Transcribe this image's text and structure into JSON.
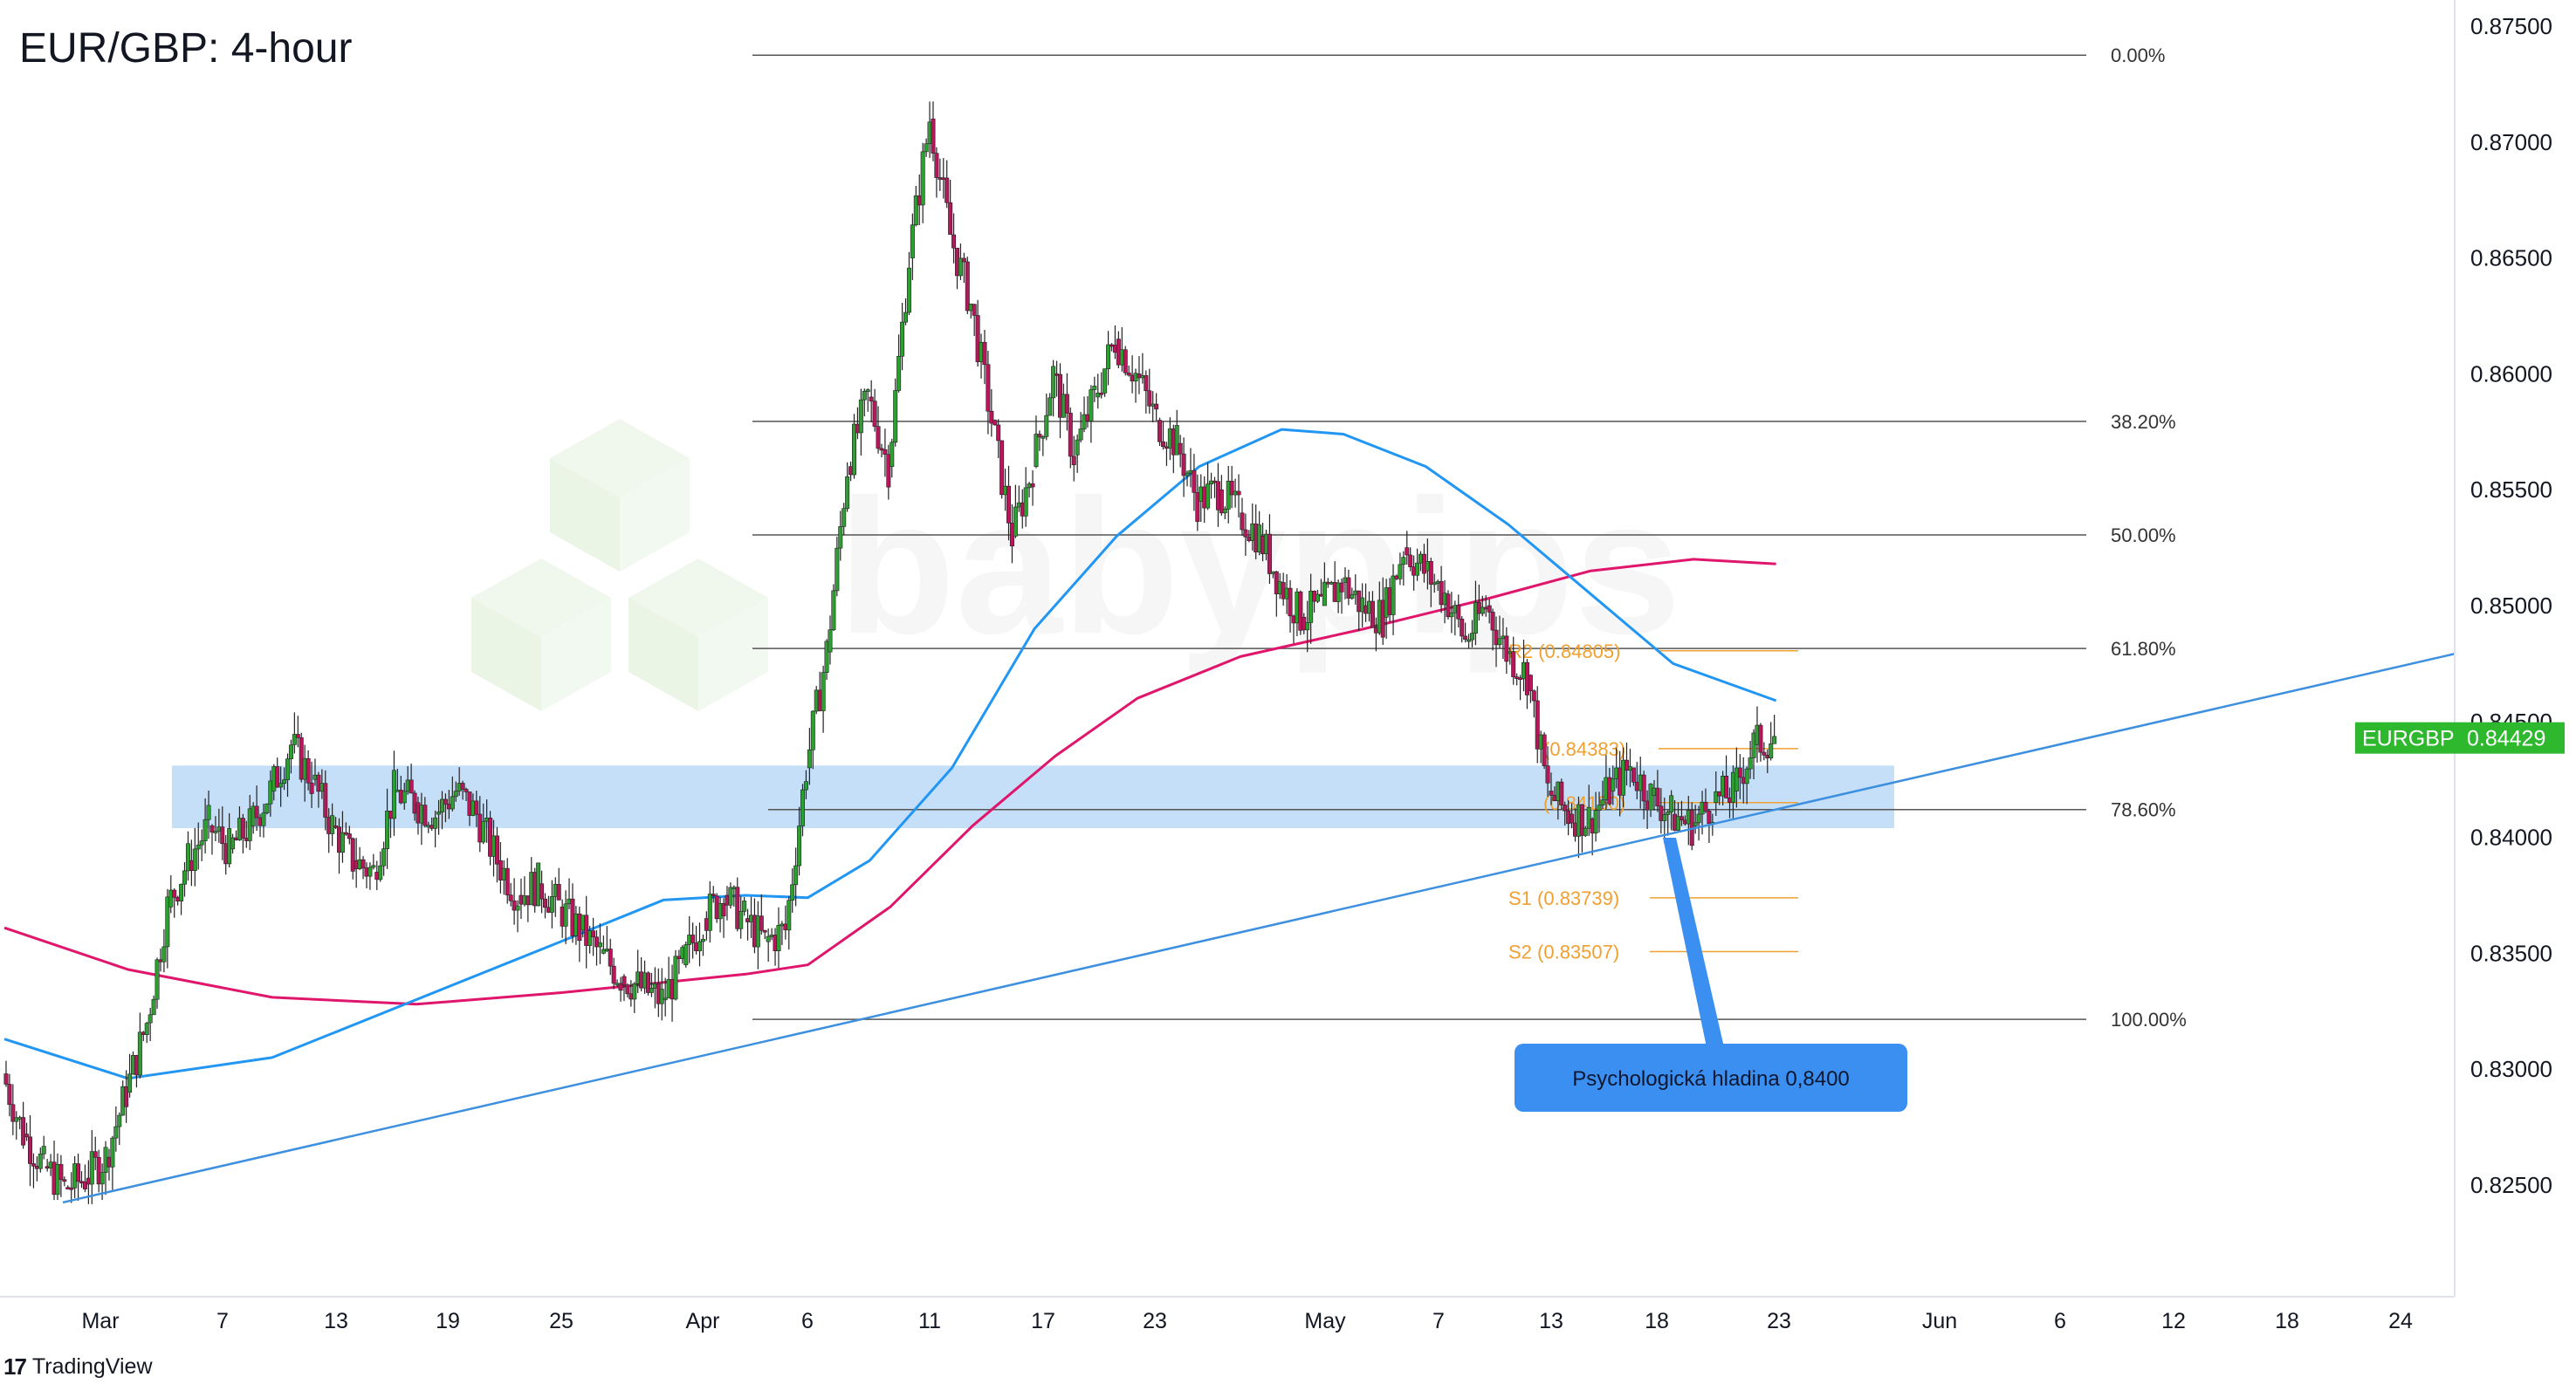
{
  "header": {
    "title": "EUR/GBP: 4-hour"
  },
  "footer": {
    "brand": "TradingView"
  },
  "colors": {
    "bull": "#2e9e33",
    "bear": "#b5175a",
    "sma100": "#2196f3",
    "sma200": "#e0166c",
    "trendline": "#3d8fe0",
    "zone": "#bbd9f7",
    "fib": "#555555",
    "pivot": "#f0a030",
    "callout": "#3a8ff0",
    "price_badge": "#2eb82e"
  },
  "watermark": {
    "text": "babypips"
  },
  "chart_data": {
    "type": "candlestick",
    "symbol": "EURGBP",
    "last_price": "0.84429",
    "ylim": [
      0.8195,
      0.8765
    ],
    "y_ticks": [
      "0.87500",
      "0.87000",
      "0.86500",
      "0.86000",
      "0.85500",
      "0.85000",
      "0.84500",
      "0.84000",
      "0.83500",
      "0.83000",
      "0.82500"
    ],
    "x_ticks": [
      "Mar",
      "7",
      "13",
      "19",
      "25",
      "Apr",
      "6",
      "11",
      "17",
      "23",
      "May",
      "7",
      "13",
      "18",
      "23",
      "Jun",
      "6",
      "12",
      "18",
      "24"
    ],
    "fibonacci": [
      {
        "label": "0.00%",
        "price": 0.87375
      },
      {
        "label": "38.20%",
        "price": 0.85795
      },
      {
        "label": "50.00%",
        "price": 0.85305
      },
      {
        "label": "61.80%",
        "price": 0.84815
      },
      {
        "label": "78.60%",
        "price": 0.8412
      },
      {
        "label": "100.00%",
        "price": 0.83215
      }
    ],
    "pivots": [
      {
        "label": "R2 (0.84805)",
        "price": 0.84805
      },
      {
        "label": "(0.84383)",
        "price": 0.84383
      },
      {
        "label": "(0.84150)",
        "price": 0.8415
      },
      {
        "label": "S1 (0.83739)",
        "price": 0.83739
      },
      {
        "label": "S2 (0.83507)",
        "price": 0.83507
      }
    ],
    "support_zone": [
      0.8404,
      0.8431
    ],
    "trendline": [
      {
        "date": "2025-03-01",
        "price": 0.82425
      },
      {
        "date": "2025-05-31",
        "price": 0.84792
      }
    ],
    "annotation": "Psychologická hladina 0,8400",
    "series_close": [
      {
        "date": "2025-02-25",
        "close": 0.8298
      },
      {
        "date": "2025-02-26",
        "close": 0.8272
      },
      {
        "date": "2025-02-27",
        "close": 0.8258
      },
      {
        "date": "2025-02-28",
        "close": 0.8249
      },
      {
        "date": "2025-03-01",
        "close": 0.8253
      },
      {
        "date": "2025-03-02",
        "close": 0.8262
      },
      {
        "date": "2025-03-03",
        "close": 0.829
      },
      {
        "date": "2025-03-04",
        "close": 0.832
      },
      {
        "date": "2025-03-05",
        "close": 0.837
      },
      {
        "date": "2025-03-06",
        "close": 0.839
      },
      {
        "date": "2025-03-07",
        "close": 0.8405
      },
      {
        "date": "2025-03-08",
        "close": 0.8395
      },
      {
        "date": "2025-03-09",
        "close": 0.8405
      },
      {
        "date": "2025-03-10",
        "close": 0.842
      },
      {
        "date": "2025-03-11",
        "close": 0.844
      },
      {
        "date": "2025-03-12",
        "close": 0.8425
      },
      {
        "date": "2025-03-13",
        "close": 0.8405
      },
      {
        "date": "2025-03-14",
        "close": 0.839
      },
      {
        "date": "2025-03-15",
        "close": 0.8385
      },
      {
        "date": "2025-03-16",
        "close": 0.842
      },
      {
        "date": "2025-03-17",
        "close": 0.8415
      },
      {
        "date": "2025-03-18",
        "close": 0.841
      },
      {
        "date": "2025-03-19",
        "close": 0.842
      },
      {
        "date": "2025-03-20",
        "close": 0.841
      },
      {
        "date": "2025-03-21",
        "close": 0.839
      },
      {
        "date": "2025-03-22",
        "close": 0.8375
      },
      {
        "date": "2025-03-23",
        "close": 0.838
      },
      {
        "date": "2025-03-24",
        "close": 0.837
      },
      {
        "date": "2025-03-25",
        "close": 0.836
      },
      {
        "date": "2025-03-26",
        "close": 0.835
      },
      {
        "date": "2025-03-27",
        "close": 0.834
      },
      {
        "date": "2025-03-28",
        "close": 0.8335
      },
      {
        "date": "2025-03-29",
        "close": 0.833
      },
      {
        "date": "2025-03-30",
        "close": 0.8345
      },
      {
        "date": "2025-03-31",
        "close": 0.8365
      },
      {
        "date": "2025-04-01",
        "close": 0.8375
      },
      {
        "date": "2025-04-02",
        "close": 0.8365
      },
      {
        "date": "2025-04-03",
        "close": 0.8355
      },
      {
        "date": "2025-04-04",
        "close": 0.836
      },
      {
        "date": "2025-04-05",
        "close": 0.843
      },
      {
        "date": "2025-04-06",
        "close": 0.848
      },
      {
        "date": "2025-04-07",
        "close": 0.856
      },
      {
        "date": "2025-04-08",
        "close": 0.859
      },
      {
        "date": "2025-04-09",
        "close": 0.856
      },
      {
        "date": "2025-04-10",
        "close": 0.865
      },
      {
        "date": "2025-04-11",
        "close": 0.871
      },
      {
        "date": "2025-04-12",
        "close": 0.866
      },
      {
        "date": "2025-04-13",
        "close": 0.863
      },
      {
        "date": "2025-04-14",
        "close": 0.858
      },
      {
        "date": "2025-04-15",
        "close": 0.853
      },
      {
        "date": "2025-04-16",
        "close": 0.856
      },
      {
        "date": "2025-04-17",
        "close": 0.86
      },
      {
        "date": "2025-04-18",
        "close": 0.8565
      },
      {
        "date": "2025-04-19",
        "close": 0.859
      },
      {
        "date": "2025-04-20",
        "close": 0.8615
      },
      {
        "date": "2025-04-21",
        "close": 0.86
      },
      {
        "date": "2025-04-22",
        "close": 0.858
      },
      {
        "date": "2025-04-23",
        "close": 0.857
      },
      {
        "date": "2025-04-24",
        "close": 0.8545
      },
      {
        "date": "2025-04-25",
        "close": 0.855
      },
      {
        "date": "2025-04-26",
        "close": 0.854
      },
      {
        "date": "2025-04-27",
        "close": 0.853
      },
      {
        "date": "2025-04-28",
        "close": 0.851
      },
      {
        "date": "2025-04-29",
        "close": 0.8495
      },
      {
        "date": "2025-04-30",
        "close": 0.85
      },
      {
        "date": "2025-05-01",
        "close": 0.851
      },
      {
        "date": "2025-05-02",
        "close": 0.85
      },
      {
        "date": "2025-05-03",
        "close": 0.8495
      },
      {
        "date": "2025-05-04",
        "close": 0.8525
      },
      {
        "date": "2025-05-05",
        "close": 0.8515
      },
      {
        "date": "2025-05-06",
        "close": 0.8505
      },
      {
        "date": "2025-05-07",
        "close": 0.8485
      },
      {
        "date": "2025-05-08",
        "close": 0.85
      },
      {
        "date": "2025-05-09",
        "close": 0.848
      },
      {
        "date": "2025-05-10",
        "close": 0.847
      },
      {
        "date": "2025-05-11",
        "close": 0.842
      },
      {
        "date": "2025-05-12",
        "close": 0.841
      },
      {
        "date": "2025-05-13",
        "close": 0.8408
      },
      {
        "date": "2025-05-14",
        "close": 0.842
      },
      {
        "date": "2025-05-15",
        "close": 0.843
      },
      {
        "date": "2025-05-16",
        "close": 0.8418
      },
      {
        "date": "2025-05-17",
        "close": 0.841
      },
      {
        "date": "2025-05-18",
        "close": 0.8405
      },
      {
        "date": "2025-05-19",
        "close": 0.8415
      },
      {
        "date": "2025-05-20",
        "close": 0.842
      },
      {
        "date": "2025-05-21",
        "close": 0.844
      },
      {
        "date": "2025-05-22",
        "close": 0.8443
      }
    ],
    "sma_100": [
      {
        "date": "2025-02-25",
        "v": 0.8313
      },
      {
        "date": "2025-03-03",
        "v": 0.8296
      },
      {
        "date": "2025-03-10",
        "v": 0.8305
      },
      {
        "date": "2025-03-17",
        "v": 0.833
      },
      {
        "date": "2025-03-24",
        "v": 0.8355
      },
      {
        "date": "2025-03-29",
        "v": 0.8373
      },
      {
        "date": "2025-04-02",
        "v": 0.8375
      },
      {
        "date": "2025-04-05",
        "v": 0.8374
      },
      {
        "date": "2025-04-08",
        "v": 0.839
      },
      {
        "date": "2025-04-12",
        "v": 0.843
      },
      {
        "date": "2025-04-16",
        "v": 0.849
      },
      {
        "date": "2025-04-20",
        "v": 0.853
      },
      {
        "date": "2025-04-24",
        "v": 0.856
      },
      {
        "date": "2025-04-28",
        "v": 0.8576
      },
      {
        "date": "2025-05-01",
        "v": 0.8574
      },
      {
        "date": "2025-05-05",
        "v": 0.856
      },
      {
        "date": "2025-05-09",
        "v": 0.8535
      },
      {
        "date": "2025-05-13",
        "v": 0.8505
      },
      {
        "date": "2025-05-17",
        "v": 0.8475
      },
      {
        "date": "2025-05-22",
        "v": 0.8459
      }
    ],
    "sma_200": [
      {
        "date": "2025-02-25",
        "v": 0.8361
      },
      {
        "date": "2025-03-03",
        "v": 0.8343
      },
      {
        "date": "2025-03-10",
        "v": 0.8331
      },
      {
        "date": "2025-03-17",
        "v": 0.8328
      },
      {
        "date": "2025-03-24",
        "v": 0.8333
      },
      {
        "date": "2025-04-02",
        "v": 0.8341
      },
      {
        "date": "2025-04-05",
        "v": 0.8345
      },
      {
        "date": "2025-04-09",
        "v": 0.837
      },
      {
        "date": "2025-04-13",
        "v": 0.8405
      },
      {
        "date": "2025-04-17",
        "v": 0.8435
      },
      {
        "date": "2025-04-21",
        "v": 0.846
      },
      {
        "date": "2025-04-26",
        "v": 0.8478
      },
      {
        "date": "2025-05-02",
        "v": 0.849
      },
      {
        "date": "2025-05-08",
        "v": 0.8503
      },
      {
        "date": "2025-05-13",
        "v": 0.8515
      },
      {
        "date": "2025-05-18",
        "v": 0.852
      },
      {
        "date": "2025-05-22",
        "v": 0.8518
      }
    ]
  }
}
